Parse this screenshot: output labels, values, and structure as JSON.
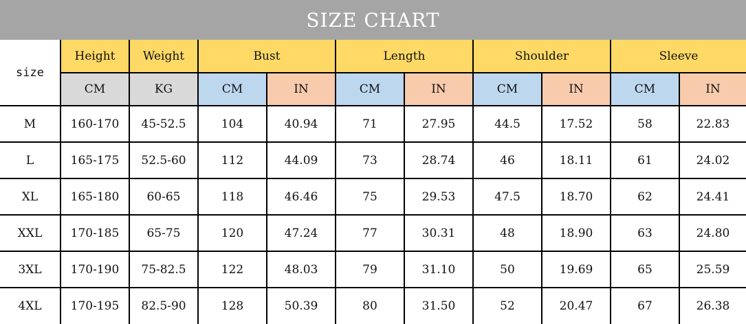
{
  "title": "SIZE CHART",
  "size_label": "size",
  "measures": [
    {
      "label": "Height",
      "unit": "CM"
    },
    {
      "label": "Weight",
      "unit": "KG"
    }
  ],
  "dual_measures": [
    {
      "label": "Bust",
      "units": [
        "CM",
        "IN"
      ]
    },
    {
      "label": "Length",
      "units": [
        "CM",
        "IN"
      ]
    },
    {
      "label": "Shoulder",
      "units": [
        "CM",
        "IN"
      ]
    },
    {
      "label": "Sleeve",
      "units": [
        "CM",
        "IN"
      ]
    }
  ],
  "colors": {
    "title_bar": "#a5a5a5",
    "header_yellow": "#ffd966",
    "unit_gray": "#d9d9d9",
    "unit_blue": "#bdd7ee",
    "unit_peach": "#f8cbad"
  },
  "rows": [
    {
      "size": "M",
      "cells": [
        "160-170",
        "45-52.5",
        "104",
        "40.94",
        "71",
        "27.95",
        "44.5",
        "17.52",
        "58",
        "22.83"
      ]
    },
    {
      "size": "L",
      "cells": [
        "165-175",
        "52.5-60",
        "112",
        "44.09",
        "73",
        "28.74",
        "46",
        "18.11",
        "61",
        "24.02"
      ]
    },
    {
      "size": "XL",
      "cells": [
        "165-180",
        "60-65",
        "118",
        "46.46",
        "75",
        "29.53",
        "47.5",
        "18.70",
        "62",
        "24.41"
      ]
    },
    {
      "size": "XXL",
      "cells": [
        "170-185",
        "65-75",
        "120",
        "47.24",
        "77",
        "30.31",
        "48",
        "18.90",
        "63",
        "24.80"
      ]
    },
    {
      "size": "3XL",
      "cells": [
        "170-190",
        "75-82.5",
        "122",
        "48.03",
        "79",
        "31.10",
        "50",
        "19.69",
        "65",
        "25.59"
      ]
    },
    {
      "size": "4XL",
      "cells": [
        "170-195",
        "82.5-90",
        "128",
        "50.39",
        "80",
        "31.50",
        "52",
        "20.47",
        "67",
        "26.38"
      ]
    }
  ]
}
